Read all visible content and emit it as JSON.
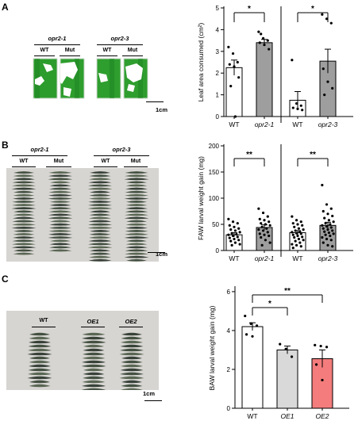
{
  "panels": {
    "A": {
      "letter": "A",
      "photo": {
        "groups": [
          {
            "title": "opr2-1",
            "subs": [
              "WT",
              "Mut"
            ]
          },
          {
            "title": "opr2-3",
            "subs": [
              "WT",
              "Mut"
            ]
          }
        ],
        "scale": "1cm"
      },
      "chart": {
        "ylabel": "Leaf area consumed (cm²)",
        "yticks": [
          "0",
          "1",
          "2",
          "3",
          "4",
          "5"
        ],
        "xticks": [
          "WT",
          "opr2-1",
          "WT",
          "opr2-3"
        ],
        "sig": [
          "*",
          "*"
        ]
      }
    },
    "B": {
      "letter": "B",
      "photo": {
        "groups": [
          {
            "title": "opr2-1",
            "subs": [
              "WT",
              "Mut"
            ]
          },
          {
            "title": "opr2-3",
            "subs": [
              "WT",
              "Mut"
            ]
          }
        ],
        "scale": "1cm"
      },
      "chart": {
        "ylabel": "FAW larval weight gain (mg)",
        "yticks": [
          "0",
          "50",
          "100",
          "150",
          "200"
        ],
        "xticks": [
          "WT",
          "opr2-1",
          "WT",
          "opr2-3"
        ],
        "sig": [
          "**",
          "**"
        ]
      }
    },
    "C": {
      "letter": "C",
      "photo": {
        "labels": [
          "WT",
          "OE1",
          "OE2"
        ],
        "scale": "1cm"
      },
      "chart": {
        "ylabel": "BAW larval weight gain (mg)",
        "yticks": [
          "0",
          "2",
          "4",
          "6"
        ],
        "xticks": [
          "WT",
          "OE1",
          "OE2"
        ],
        "sig": [
          "*",
          "**"
        ]
      }
    }
  },
  "chart_data": [
    {
      "type": "bar",
      "title": "",
      "xlabel": "",
      "ylabel": "Leaf area consumed (cm²)",
      "ylim": [
        0,
        5
      ],
      "categories": [
        "WT",
        "opr2-1",
        "WT",
        "opr2-3"
      ],
      "values": [
        2.25,
        3.4,
        0.75,
        2.55
      ],
      "errors": [
        0.35,
        0.15,
        0.4,
        0.55
      ],
      "colors": [
        "#ffffff",
        "#9e9e9e",
        "#ffffff",
        "#9e9e9e"
      ],
      "points": [
        [
          3.2,
          2.9,
          2.5,
          2.4,
          2.3,
          1.8,
          1.4,
          0.0
        ],
        [
          3.9,
          3.6,
          3.5,
          3.4,
          3.3,
          3.1,
          3.8
        ],
        [
          2.6,
          0.6,
          0.5,
          0.4,
          0.35,
          0.3
        ],
        [
          4.7,
          4.5,
          4.3,
          2.2,
          1.6,
          1.3,
          1.0
        ]
      ],
      "significance": [
        [
          "WT",
          "opr2-1",
          "*"
        ],
        [
          "WT",
          "opr2-3",
          "*"
        ]
      ]
    },
    {
      "type": "bar",
      "title": "",
      "xlabel": "",
      "ylabel": "FAW larval weight gain (mg)",
      "ylim": [
        0,
        200
      ],
      "categories": [
        "WT",
        "opr2-1",
        "WT",
        "opr2-3"
      ],
      "values": [
        30,
        44,
        34,
        48
      ],
      "errors": [
        4,
        5,
        4,
        6
      ],
      "colors": [
        "#ffffff",
        "#9e9e9e",
        "#ffffff",
        "#9e9e9e"
      ],
      "points": [
        [
          60,
          55,
          52,
          48,
          45,
          42,
          40,
          38,
          35,
          33,
          31,
          30,
          28,
          26,
          24,
          22,
          20,
          18,
          15,
          12,
          10
        ],
        [
          80,
          72,
          65,
          60,
          58,
          55,
          52,
          50,
          48,
          45,
          42,
          40,
          38,
          35,
          32,
          30,
          28,
          25,
          20,
          15,
          10
        ],
        [
          65,
          58,
          55,
          52,
          50,
          48,
          45,
          42,
          40,
          38,
          36,
          35,
          33,
          32,
          30,
          28,
          26,
          25,
          22,
          20,
          18,
          15,
          12,
          10,
          8,
          5
        ],
        [
          125,
          88,
          80,
          75,
          70,
          66,
          62,
          58,
          55,
          52,
          50,
          48,
          46,
          44,
          42,
          40,
          38,
          36,
          34,
          32,
          30,
          28,
          25,
          22,
          20,
          15,
          10,
          8
        ]
      ],
      "significance": [
        [
          "WT",
          "opr2-1",
          "**"
        ],
        [
          "WT",
          "opr2-3",
          "**"
        ]
      ]
    },
    {
      "type": "bar",
      "title": "",
      "xlabel": "",
      "ylabel": "BAW larval weight gain (mg)",
      "ylim": [
        0,
        6.2
      ],
      "categories": [
        "WT",
        "OE1",
        "OE2"
      ],
      "values": [
        4.2,
        3.0,
        2.55
      ],
      "errors": [
        0.2,
        0.2,
        0.45
      ],
      "colors": [
        "#ffffff",
        "#d9d9d9",
        "#f47c7c"
      ],
      "points": [
        [
          4.75,
          4.35,
          4.25,
          3.8,
          3.7
        ],
        [
          3.3,
          3.05,
          2.65
        ],
        [
          3.25,
          3.2,
          3.15,
          2.25,
          1.45
        ]
      ],
      "significance": [
        [
          "WT",
          "OE1",
          "*"
        ],
        [
          "WT",
          "OE2",
          "**"
        ]
      ]
    }
  ]
}
